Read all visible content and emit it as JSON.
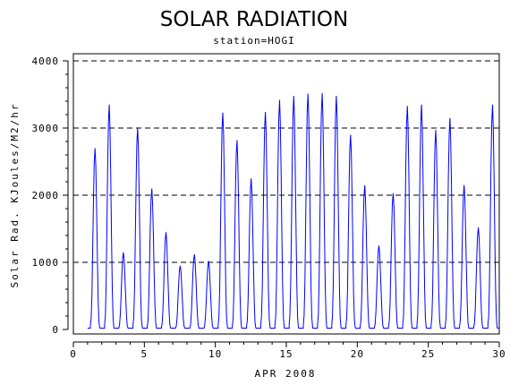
{
  "chart_data": {
    "type": "line",
    "title": "SOLAR RADIATION",
    "subtitle": "station=HOGI",
    "xlabel": "APR 2008",
    "ylabel": "Solar Rad. KJoules/M2/hr",
    "xlim": [
      0,
      30
    ],
    "ylim": [
      0,
      4000
    ],
    "x_ticks": [
      0,
      5,
      10,
      15,
      20,
      25,
      30
    ],
    "y_ticks": [
      0,
      1000,
      2000,
      3000,
      4000
    ],
    "x_tick_labels": [
      "0",
      "5",
      "10",
      "15",
      "20",
      "25",
      "30"
    ],
    "y_tick_labels": [
      "0",
      "1000",
      "2000",
      "3000",
      "4000"
    ],
    "grid": "horizontal dashed",
    "line_color": "#0000ff",
    "daily_peaks": [
      {
        "day": 1,
        "peak": 2700
      },
      {
        "day": 2,
        "peak": 3350
      },
      {
        "day": 3,
        "peak": 1150
      },
      {
        "day": 4,
        "peak": 3000
      },
      {
        "day": 5,
        "peak": 2100
      },
      {
        "day": 6,
        "peak": 1450
      },
      {
        "day": 7,
        "peak": 950
      },
      {
        "day": 8,
        "peak": 1120
      },
      {
        "day": 9,
        "peak": 1020
      },
      {
        "day": 10,
        "peak": 3230
      },
      {
        "day": 11,
        "peak": 2820
      },
      {
        "day": 12,
        "peak": 2250
      },
      {
        "day": 13,
        "peak": 3240
      },
      {
        "day": 14,
        "peak": 3420
      },
      {
        "day": 15,
        "peak": 3480
      },
      {
        "day": 16,
        "peak": 3510
      },
      {
        "day": 17,
        "peak": 3520
      },
      {
        "day": 18,
        "peak": 3480
      },
      {
        "day": 19,
        "peak": 2900
      },
      {
        "day": 20,
        "peak": 2150
      },
      {
        "day": 21,
        "peak": 1250
      },
      {
        "day": 22,
        "peak": 2030
      },
      {
        "day": 23,
        "peak": 3330
      },
      {
        "day": 24,
        "peak": 3350
      },
      {
        "day": 25,
        "peak": 2970
      },
      {
        "day": 26,
        "peak": 3150
      },
      {
        "day": 27,
        "peak": 2150
      },
      {
        "day": 28,
        "peak": 1520
      },
      {
        "day": 29,
        "peak": 3350
      }
    ]
  }
}
